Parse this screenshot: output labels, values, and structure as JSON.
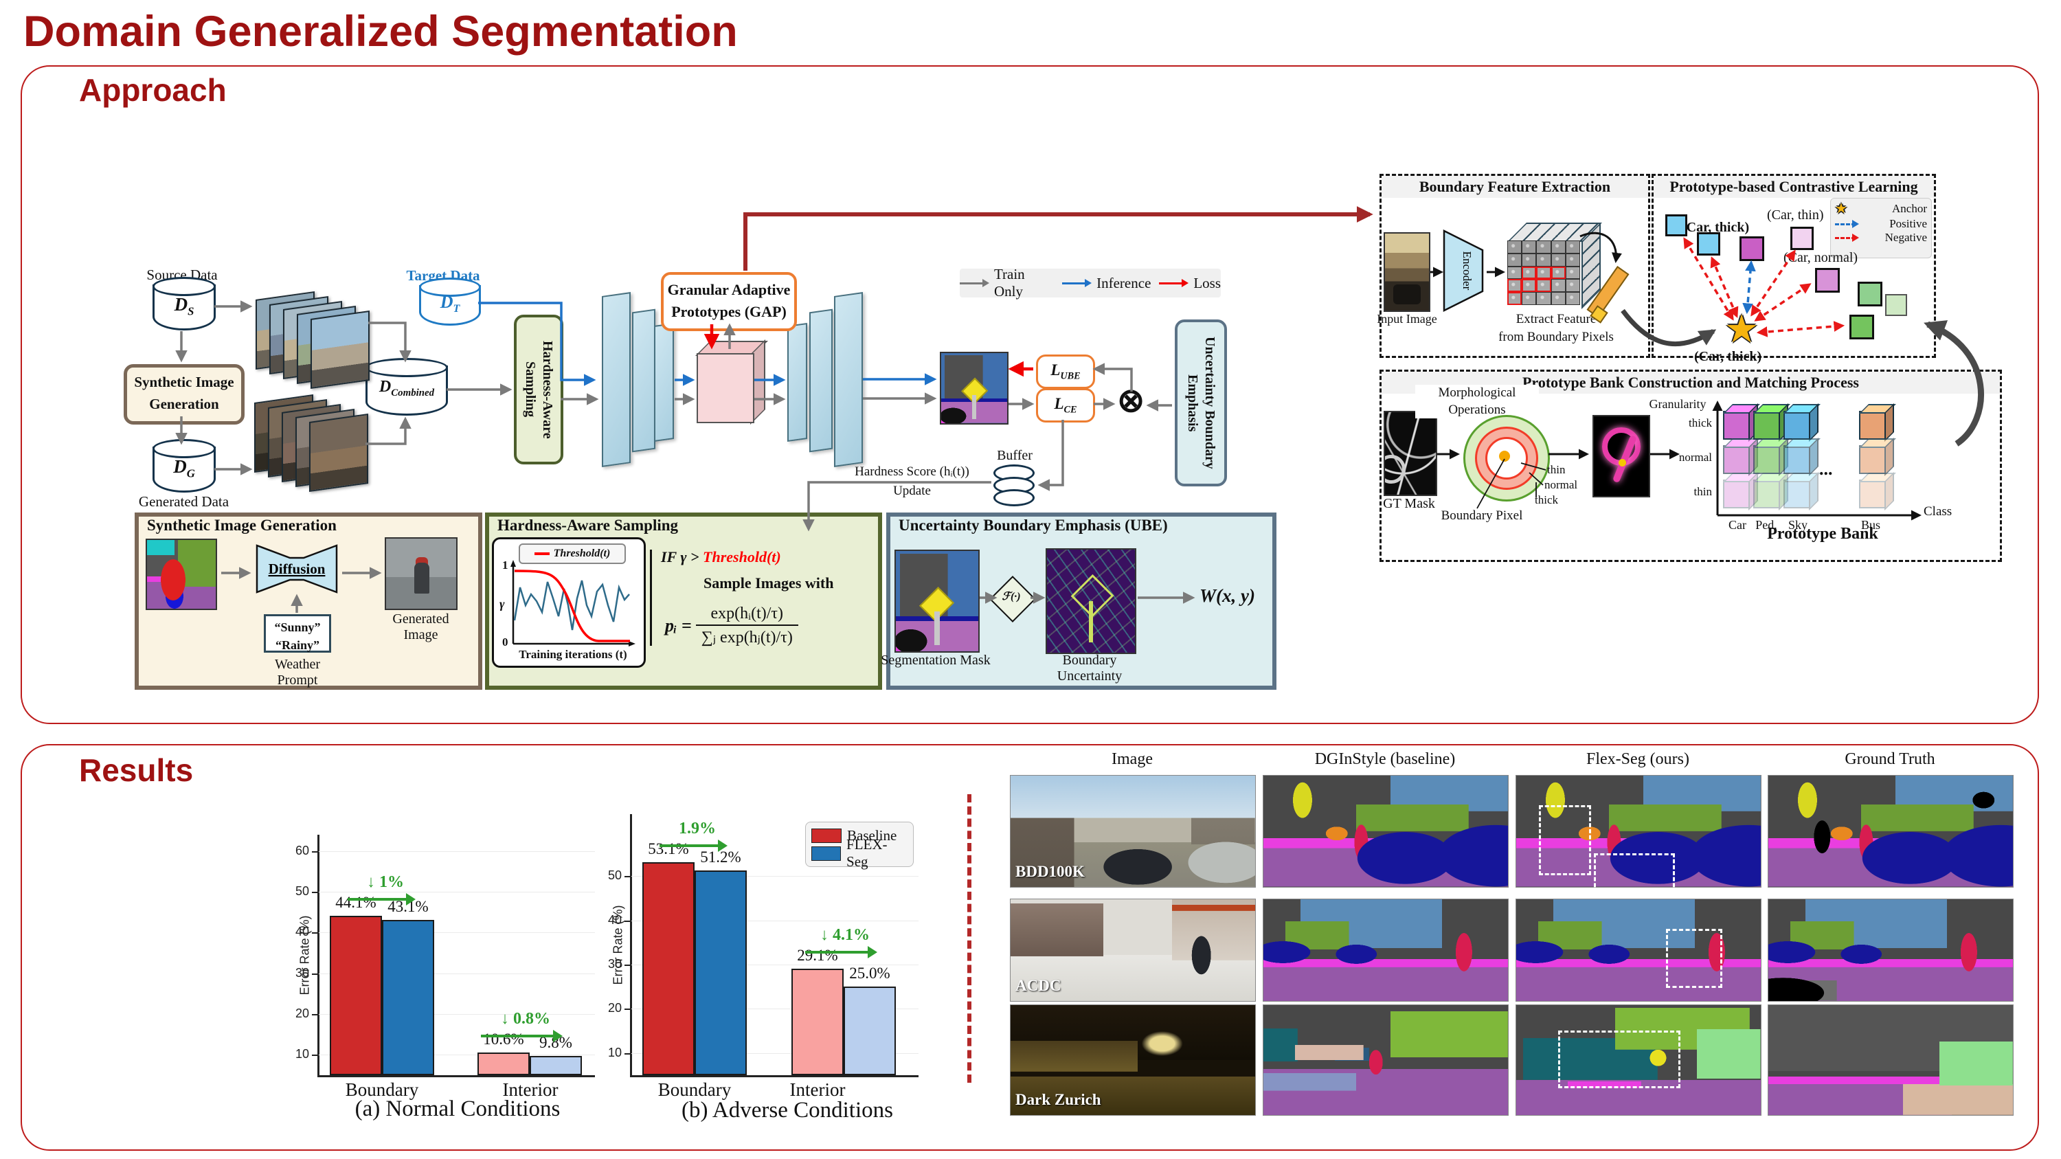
{
  "page": {
    "title": "Domain Generalized Segmentation"
  },
  "approach": {
    "title": "Approach",
    "legend": {
      "train_only": "Train Only",
      "inference": "Inference",
      "loss": "Loss"
    },
    "flow": {
      "source_data": "Source Data",
      "d_s": {
        "m": "D",
        "s": "S"
      },
      "target_data": "Target Data",
      "d_t": {
        "m": "D",
        "s": "T"
      },
      "sig1": "Synthetic Image",
      "sig2": "Generation",
      "d_g": {
        "m": "D",
        "s": "G"
      },
      "generated_data": "Generated Data",
      "d_combined": {
        "m": "D",
        "s": "Combined"
      },
      "hardness_sampling": "Hardness-Aware Sampling",
      "gap1": "Granular Adaptive",
      "gap2": "Prototypes (GAP)",
      "l_ube": {
        "m": "L",
        "s": "UBE"
      },
      "l_ce": {
        "m": "L",
        "s": "CE"
      },
      "otimes": "⊗",
      "ube_vertical": "Uncertainty Boundary Emphasis",
      "buffer": "Buffer",
      "hardness_score": "Hardness Score (hᵢ(t))",
      "update": "Update"
    },
    "bfe": {
      "title": "Boundary Feature Extraction",
      "input_image": "Input Image",
      "encoder": "Encoder",
      "extract1": "Extract Feature",
      "extract2": "from Boundary Pixels"
    },
    "pcl": {
      "title": "Prototype-based Contrastive Learning",
      "legend": {
        "star": "★",
        "anchor": "Anchor",
        "positive": "Positive",
        "negative": "Negative"
      },
      "car_thick": "(Car, thick)",
      "car_thin": "(Car, thin)",
      "car_normal": "(Car, normal)",
      "anchor_label": "(Car, thick)",
      "square_colors": [
        "#7ed0f2",
        "#7ed0f2",
        "#c95fc5",
        "#f2d3f0",
        "#d893d8",
        "#8fd08f",
        "#cfe9c4",
        "#74c45e"
      ]
    },
    "pbc": {
      "title": "Prototype Bank Construction and Matching Process",
      "gt_mask": "GT Mask",
      "morph1": "Morphological",
      "morph2": "Operations",
      "ring_thin": "thin",
      "ring_normal": "normal",
      "ring_thick": "thick",
      "boundary_pixel": "Boundary Pixel",
      "granularity": "Granularity",
      "class_axis": "Class",
      "gran_ticks": [
        "thick",
        "normal",
        "thin"
      ],
      "class_ticks": [
        "Car",
        "Ped.",
        "Sky",
        "Bus"
      ],
      "ellipsis": "...",
      "bank": "Prototype Bank",
      "bank_colors": [
        "#cf6ad0",
        "#6cbf52",
        "#5fb0e0",
        "#e8a274"
      ],
      "bank_alphas": [
        1,
        0.62,
        0.3
      ]
    },
    "boxes": {
      "sig": {
        "title": "Synthetic Image Generation",
        "diffusion": "Diffusion",
        "generated_image": "Generated Image",
        "prompt1": "“Sunny”",
        "prompt2": "“Rainy”",
        "weather_prompt": "Weather Prompt"
      },
      "has": {
        "title": "Hardness-Aware Sampling",
        "threshold": "Threshold(t)",
        "y_top": "1",
        "y_mid": "γ",
        "y_bot": "0",
        "x_axis": "Training iterations (t)",
        "if_prefix": "IF γ > ",
        "if_threshold": "Threshold(t)",
        "sample": "Sample Images with",
        "p_lhs": "pᵢ =",
        "p_num": "exp(hᵢ(t)/τ)",
        "p_den": "∑ⱼ exp(hⱼ(t)/τ)"
      },
      "ube": {
        "title": "Uncertainty Boundary Emphasis (UBE)",
        "seg_mask": "Segmentation Mask",
        "f": "ℱ(·)",
        "boundary_uncertainty": "Boundary Uncertainty",
        "w": "W(x, y)"
      }
    }
  },
  "results": {
    "title": "Results",
    "grid": {
      "headers": [
        "Image",
        "DGInStyle (baseline)",
        "Flex-Seg (ours)",
        "Ground Truth"
      ],
      "rows": [
        "BDD100K",
        "ACDC",
        "Dark Zurich"
      ]
    }
  },
  "chart_data": [
    {
      "type": "bar",
      "title": "(a) Normal Conditions",
      "ylabel": "Error Rate (%)",
      "ylim": [
        5,
        64
      ],
      "yticks": [
        10,
        20,
        30,
        40,
        50,
        60
      ],
      "categories": [
        "Boundary",
        "Interior"
      ],
      "series": [
        {
          "name": "Baseline",
          "values": [
            44.1,
            10.6
          ],
          "colors": [
            "#ce2a2a",
            "#f9a2a0"
          ]
        },
        {
          "name": "FLEX-Seg",
          "values": [
            43.1,
            9.8
          ],
          "colors": [
            "#2274b4",
            "#b9cfee"
          ]
        }
      ],
      "bar_labels": [
        [
          "44.1%",
          "43.1%"
        ],
        [
          "10.6%",
          "9.8%"
        ]
      ],
      "annotations": [
        "↓ 1%",
        "↓ 0.8%"
      ],
      "legend": null,
      "grid": "horizontal-light"
    },
    {
      "type": "bar",
      "title": "(b) Adverse Conditions",
      "ylabel": "Error Rate (%)",
      "ylim": [
        5,
        64
      ],
      "yticks": [
        10,
        20,
        30,
        40,
        50
      ],
      "categories": [
        "Boundary",
        "Interior"
      ],
      "series": [
        {
          "name": "Baseline",
          "values": [
            53.1,
            29.1
          ],
          "colors": [
            "#ce2a2a",
            "#f9a2a0"
          ]
        },
        {
          "name": "FLEX-Seg",
          "values": [
            51.2,
            25.0
          ],
          "colors": [
            "#2274b4",
            "#b9cfee"
          ]
        }
      ],
      "bar_labels": [
        [
          "53.1%",
          "51.2%"
        ],
        [
          "29.1%",
          "25.0%"
        ]
      ],
      "annotations": [
        "1.9%",
        "↓ 4.1%"
      ],
      "legend": [
        "Baseline",
        "FLEX-Seg"
      ],
      "legend_position": "upper right",
      "grid": "horizontal-light"
    }
  ],
  "colors": {
    "accent_red": "#9e1212",
    "baseline": "#ce2a2a",
    "flexseg": "#2274b4",
    "baseline_light": "#f9a2a0",
    "flexseg_light": "#b9cfee",
    "green": "#2f9e2f"
  }
}
